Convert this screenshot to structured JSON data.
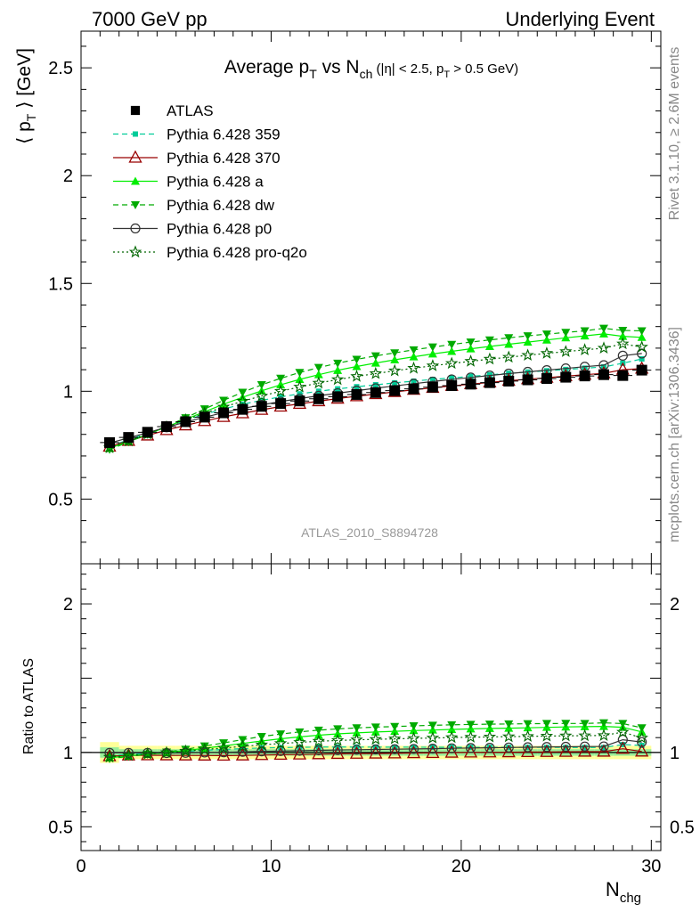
{
  "header": {
    "left": "7000 GeV pp",
    "right": "Underlying Event"
  },
  "side_labels": {
    "rivet": "Rivet 3.1.10, ≥ 2.6M events",
    "mcplots": "mcplots.cern.ch [arXiv:1306.3436]"
  },
  "chart_data": {
    "type": "scatter",
    "title_main": "Average p",
    "title_sub1": "T",
    "title_vs": " vs N",
    "title_sub2": "ch",
    "title_cuts_a": " (|η| < 2.5, p",
    "title_cuts_sub": "T",
    "title_cuts_b": " > 0.5 GeV)",
    "watermark": "ATLAS_2010_S8894728",
    "ylabel_main": "⟨ p",
    "ylabel_sub": "T",
    "ylabel_rest": " ⟩ [GeV]",
    "ylabel_ratio": "Ratio to ATLAS",
    "xlabel": "N",
    "xlabel_sub": "chg",
    "xlim": [
      0,
      30.5
    ],
    "ylim_main": [
      0.2,
      2.67
    ],
    "ylim_ratio": [
      0.34,
      2.27
    ],
    "x_ticks": [
      "0",
      "10",
      "20",
      "30"
    ],
    "y_ticks_main": [
      "0.5",
      "1",
      "1.5",
      "2",
      "2.5"
    ],
    "y_ticks_ratio": [
      "0.5",
      "1",
      "2"
    ],
    "x": [
      1.5,
      2.5,
      3.5,
      4.5,
      5.5,
      6.5,
      7.5,
      8.5,
      9.5,
      10.5,
      11.5,
      12.5,
      13.5,
      14.5,
      15.5,
      16.5,
      17.5,
      18.5,
      19.5,
      20.5,
      21.5,
      22.5,
      23.5,
      24.5,
      25.5,
      26.5,
      27.5,
      28.5,
      29.5
    ],
    "atlas": {
      "name": "ATLAS",
      "values": [
        0.762,
        0.786,
        0.81,
        0.836,
        0.859,
        0.88,
        0.9,
        0.916,
        0.93,
        0.943,
        0.955,
        0.965,
        0.975,
        0.985,
        0.994,
        1.003,
        1.011,
        1.019,
        1.026,
        1.033,
        1.04,
        1.047,
        1.053,
        1.059,
        1.065,
        1.071,
        1.077,
        1.073,
        1.098
      ]
    },
    "series": [
      {
        "name": "Pythia 6.428 359",
        "color": "#00cc99",
        "style": "dashed",
        "marker": "square-small",
        "values": [
          0.745,
          0.775,
          0.805,
          0.835,
          0.865,
          0.893,
          0.918,
          0.94,
          0.958,
          0.974,
          0.988,
          1.0,
          1.011,
          1.021,
          1.03,
          1.039,
          1.047,
          1.055,
          1.062,
          1.069,
          1.076,
          1.083,
          1.089,
          1.095,
          1.101,
          1.107,
          1.113,
          1.13,
          1.15
        ]
      },
      {
        "name": "Pythia 6.428 370",
        "color": "#990000",
        "style": "solid",
        "marker": "triangle-open",
        "values": [
          0.743,
          0.77,
          0.795,
          0.82,
          0.842,
          0.862,
          0.881,
          0.898,
          0.914,
          0.929,
          0.942,
          0.954,
          0.966,
          0.977,
          0.987,
          0.997,
          1.007,
          1.016,
          1.025,
          1.033,
          1.041,
          1.049,
          1.056,
          1.063,
          1.07,
          1.077,
          1.083,
          1.1,
          1.105
        ]
      },
      {
        "name": "Pythia 6.428 a",
        "color": "#00ee00",
        "style": "solid",
        "marker": "triangle-filled",
        "values": [
          0.735,
          0.768,
          0.8,
          0.835,
          0.87,
          0.905,
          0.94,
          0.972,
          1.002,
          1.03,
          1.055,
          1.077,
          1.097,
          1.115,
          1.131,
          1.146,
          1.16,
          1.173,
          1.185,
          1.197,
          1.208,
          1.218,
          1.228,
          1.238,
          1.248,
          1.257,
          1.266,
          1.255,
          1.25
        ]
      },
      {
        "name": "Pythia 6.428 dw",
        "color": "#00aa00",
        "style": "dashed",
        "marker": "triangle-down-filled",
        "values": [
          0.73,
          0.765,
          0.8,
          0.838,
          0.877,
          0.918,
          0.958,
          0.995,
          1.03,
          1.06,
          1.087,
          1.11,
          1.13,
          1.148,
          1.164,
          1.178,
          1.192,
          1.205,
          1.217,
          1.228,
          1.238,
          1.248,
          1.257,
          1.265,
          1.273,
          1.28,
          1.292,
          1.282,
          1.28
        ]
      },
      {
        "name": "Pythia 6.428 p0",
        "color": "#333333",
        "style": "solid",
        "marker": "circle-open",
        "values": [
          0.76,
          0.784,
          0.808,
          0.833,
          0.857,
          0.88,
          0.901,
          0.92,
          0.937,
          0.952,
          0.966,
          0.979,
          0.991,
          1.003,
          1.014,
          1.025,
          1.035,
          1.045,
          1.055,
          1.064,
          1.073,
          1.082,
          1.09,
          1.098,
          1.106,
          1.114,
          1.121,
          1.165,
          1.175
        ]
      },
      {
        "name": "Pythia 6.428 pro-q2o",
        "color": "#006600",
        "style": "dotted",
        "marker": "star",
        "values": [
          0.738,
          0.77,
          0.802,
          0.835,
          0.867,
          0.898,
          0.927,
          0.954,
          0.978,
          1.0,
          1.02,
          1.038,
          1.054,
          1.069,
          1.082,
          1.095,
          1.107,
          1.118,
          1.129,
          1.139,
          1.149,
          1.158,
          1.167,
          1.176,
          1.184,
          1.192,
          1.2,
          1.22,
          1.205
        ]
      }
    ],
    "legend_position": "top-left"
  }
}
